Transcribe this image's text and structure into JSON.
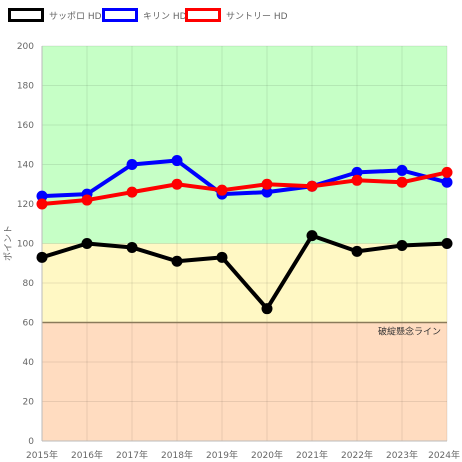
{
  "chart_data": {
    "type": "line",
    "ylabel": "ポイント",
    "ylim": [
      0,
      200
    ],
    "yticks": [
      0,
      20,
      40,
      60,
      80,
      100,
      120,
      140,
      160,
      180,
      200
    ],
    "grid": true,
    "legend_position": "top-left",
    "categories": [
      "2015年",
      "2016年",
      "2017年",
      "2018年",
      "2019年",
      "2020年",
      "2021年",
      "2022年",
      "2023年",
      "2024年"
    ],
    "series": [
      {
        "name": "サッポロ HD",
        "color": "#000000",
        "values": [
          93,
          100,
          98,
          91,
          93,
          67,
          104,
          96,
          99,
          100
        ]
      },
      {
        "name": "キリン HD",
        "color": "#0000ff",
        "values": [
          124,
          125,
          140,
          142,
          125,
          126,
          129,
          136,
          137,
          131
        ]
      },
      {
        "name": "サントリー HD",
        "color": "#ff0000",
        "values": [
          120,
          122,
          126,
          130,
          127,
          130,
          129,
          132,
          131,
          136
        ]
      }
    ],
    "bands": [
      {
        "from": 0,
        "to": 60,
        "color": "#ffdcc0"
      },
      {
        "from": 60,
        "to": 100,
        "color": "#fff8c4"
      },
      {
        "from": 100,
        "to": 200,
        "color": "#c6ffc6"
      }
    ],
    "reference_line": {
      "value": 60,
      "label": "破綻懸念ライン",
      "color": "#8a7a5a"
    }
  }
}
